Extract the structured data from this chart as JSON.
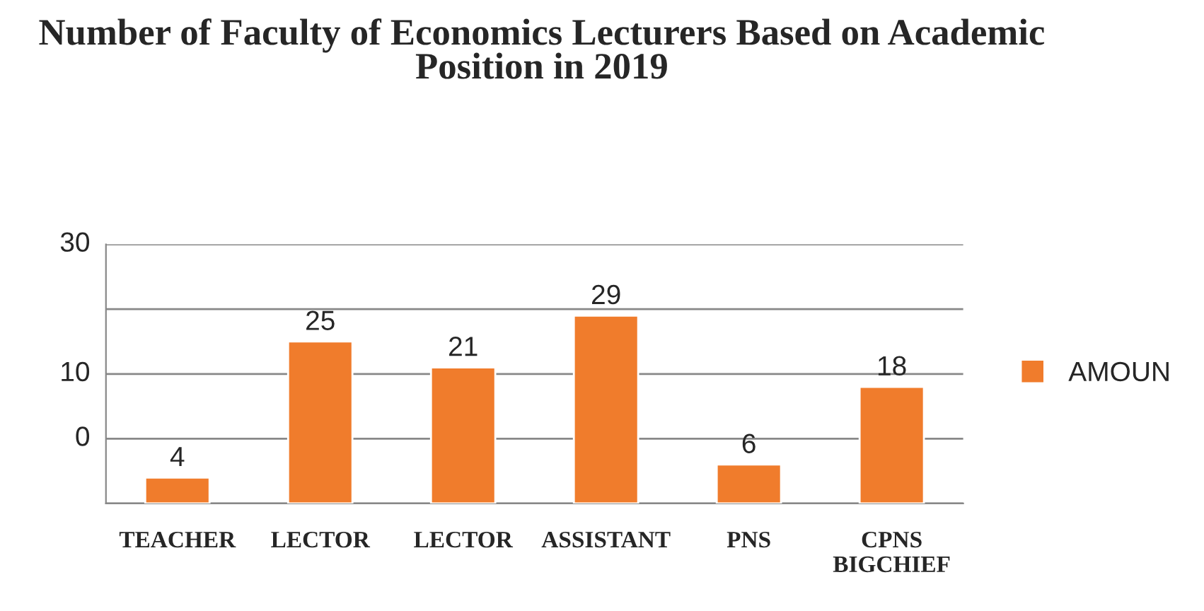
{
  "chart_data": {
    "type": "bar",
    "title": "Number of Faculty of Economics Lecturers Based on Academic Position in 2019",
    "categories": [
      "TEACHER",
      "LECTOR",
      "LECTOR",
      "ASSISTANT",
      "PNS",
      "CPNS BIGCHIEF"
    ],
    "series": [
      {
        "name": "AMOUN",
        "color": "#f07c2c",
        "values": [
          4,
          25,
          21,
          29,
          6,
          18
        ]
      }
    ],
    "ylim": [
      0,
      40
    ],
    "yticks": [
      0,
      10,
      20,
      30,
      40
    ],
    "tick_labels": "x",
    "annotations": [
      "30",
      "10",
      "0"
    ],
    "grid": "y",
    "legend": "right",
    "data_labels": true
  }
}
